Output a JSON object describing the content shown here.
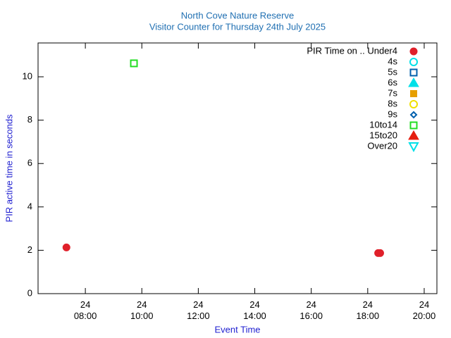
{
  "chart_data": {
    "type": "scatter",
    "title": "North Cove Nature Reserve",
    "subtitle": "Visitor Counter for Thursday 24th July 2025",
    "x_label": "Event Time",
    "y_label": "PIR active time in seconds",
    "xlim": [
      6.325,
      20.45
    ],
    "xticks": [
      {
        "value": 8,
        "label": "24\n08:00"
      },
      {
        "value": 10,
        "label": "24\n10:00"
      },
      {
        "value": 12,
        "label": "24\n12:00"
      },
      {
        "value": 14,
        "label": "24\n14:00"
      },
      {
        "value": 16,
        "label": "24\n16:00"
      },
      {
        "value": 18,
        "label": "24\n18:00"
      },
      {
        "value": 20,
        "label": "24\n20:00"
      }
    ],
    "ylim": [
      0,
      11.56
    ],
    "yticks": [
      0,
      2,
      4,
      6,
      8,
      10
    ],
    "legend": "top-right",
    "series": [
      {
        "name": "PIR Time on .. Under4",
        "color": "#e0202a",
        "marker": "circle",
        "x": [
          7.33,
          18.37,
          18.44
        ],
        "values": [
          2.13,
          1.87,
          1.87
        ]
      },
      {
        "name": "4s",
        "color": "#00e0e8",
        "marker": "circle-open",
        "x": [],
        "values": []
      },
      {
        "name": "5s",
        "color": "#0060ad",
        "marker": "square-open",
        "x": [],
        "values": []
      },
      {
        "name": "6s",
        "color": "#00e0e8",
        "marker": "triangle",
        "x": [],
        "values": []
      },
      {
        "name": "7s",
        "color": "#e69f00",
        "marker": "square",
        "x": [],
        "values": []
      },
      {
        "name": "8s",
        "color": "#f0e000",
        "marker": "circle-open",
        "x": [],
        "values": []
      },
      {
        "name": "9s",
        "color": "#0060ad",
        "marker": "diamond-open",
        "x": [],
        "values": []
      },
      {
        "name": "10to14",
        "color": "#22dd22",
        "marker": "square-open",
        "x": [
          9.72
        ],
        "values": [
          10.62
        ]
      },
      {
        "name": "15to20",
        "color": "#e51e10",
        "marker": "triangle",
        "x": [],
        "values": []
      },
      {
        "name": "Over20",
        "color": "#00e0e8",
        "marker": "triangle-down-open",
        "x": [],
        "values": []
      }
    ]
  }
}
